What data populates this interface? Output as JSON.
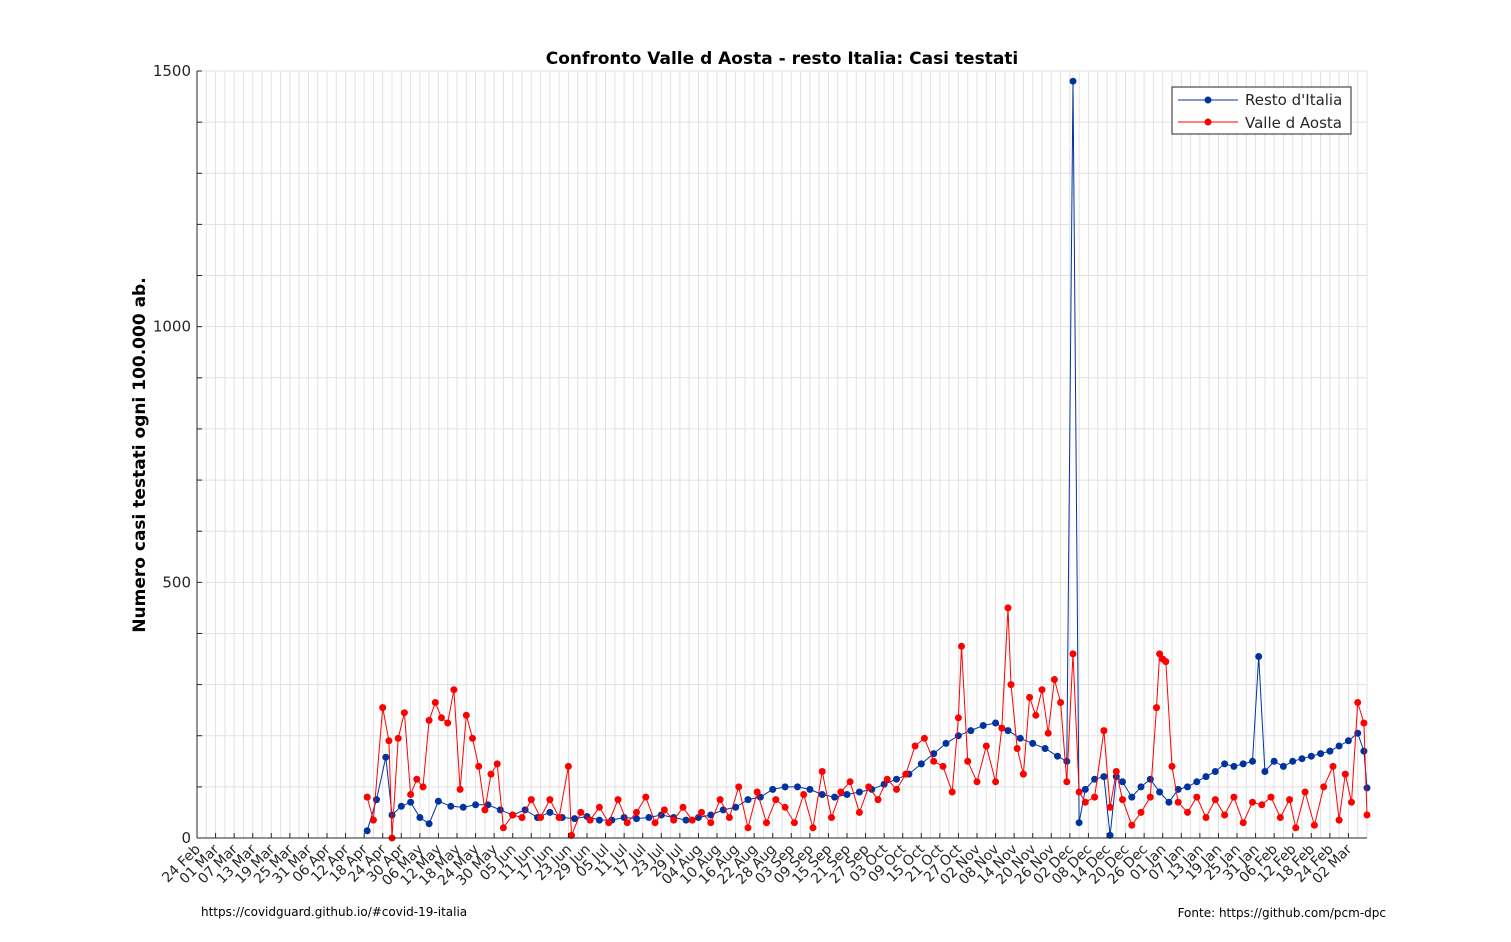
{
  "footer": {
    "left": "https://covidguard.github.io/#covid-19-italia",
    "right": "Fonte: https://github.com/pcm-dpc"
  },
  "chart_data": {
    "type": "line",
    "title": "Confronto Valle d Aosta - resto Italia: Casi testati",
    "xlabel": "",
    "ylabel": "Numero casi testati ogni 100.000 ab.",
    "ylim": [
      0,
      1500
    ],
    "yticks": [
      0,
      500,
      1000,
      1500
    ],
    "x_axis": "dates",
    "xlim": [
      "2020-02-24",
      "2021-03-08"
    ],
    "xticks": [
      "24 Feb",
      "01 Mar",
      "07 Mar",
      "13 Mar",
      "19 Mar",
      "25 Mar",
      "31 Mar",
      "06 Apr",
      "12 Apr",
      "18 Apr",
      "24 Apr",
      "30 Apr",
      "06 May",
      "12 May",
      "18 May",
      "24 May",
      "30 May",
      "05 Jun",
      "11 Jun",
      "17 Jun",
      "23 Jun",
      "29 Jun",
      "05 Jul",
      "11 Jul",
      "17 Jul",
      "23 Jul",
      "29 Jul",
      "04 Aug",
      "10 Aug",
      "16 Aug",
      "22 Aug",
      "28 Aug",
      "03 Sep",
      "09 Sep",
      "15 Sep",
      "21 Sep",
      "27 Sep",
      "03 Oct",
      "09 Oct",
      "15 Oct",
      "21 Oct",
      "27 Oct",
      "02 Nov",
      "08 Nov",
      "14 Nov",
      "20 Nov",
      "26 Nov",
      "02 Dec",
      "08 Dec",
      "14 Dec",
      "20 Dec",
      "26 Dec",
      "01 Jan",
      "07 Jan",
      "13 Jan",
      "19 Jan",
      "25 Jan",
      "31 Jan",
      "06 Feb",
      "12 Feb",
      "18 Feb",
      "24 Feb",
      "02 Mar"
    ],
    "grid": true,
    "legend_position": "top-right",
    "series": [
      {
        "name": "Resto d'Italia",
        "color": "#0033a0",
        "marker": "circle",
        "points": [
          [
            "2020-04-19",
            14
          ],
          [
            "2020-04-22",
            75
          ],
          [
            "2020-04-25",
            158
          ],
          [
            "2020-04-27",
            45
          ],
          [
            "2020-04-30",
            62
          ],
          [
            "2020-05-03",
            70
          ],
          [
            "2020-05-06",
            40
          ],
          [
            "2020-05-09",
            28
          ],
          [
            "2020-05-12",
            72
          ],
          [
            "2020-05-16",
            62
          ],
          [
            "2020-05-20",
            60
          ],
          [
            "2020-05-24",
            65
          ],
          [
            "2020-05-28",
            65
          ],
          [
            "2020-06-01",
            55
          ],
          [
            "2020-06-05",
            45
          ],
          [
            "2020-06-09",
            55
          ],
          [
            "2020-06-13",
            40
          ],
          [
            "2020-06-17",
            50
          ],
          [
            "2020-06-21",
            40
          ],
          [
            "2020-06-25",
            38
          ],
          [
            "2020-06-29",
            42
          ],
          [
            "2020-07-03",
            35
          ],
          [
            "2020-07-07",
            35
          ],
          [
            "2020-07-11",
            40
          ],
          [
            "2020-07-15",
            38
          ],
          [
            "2020-07-19",
            40
          ],
          [
            "2020-07-23",
            45
          ],
          [
            "2020-07-27",
            40
          ],
          [
            "2020-07-31",
            35
          ],
          [
            "2020-08-04",
            40
          ],
          [
            "2020-08-08",
            45
          ],
          [
            "2020-08-12",
            55
          ],
          [
            "2020-08-16",
            60
          ],
          [
            "2020-08-20",
            75
          ],
          [
            "2020-08-24",
            80
          ],
          [
            "2020-08-28",
            95
          ],
          [
            "2020-09-01",
            100
          ],
          [
            "2020-09-05",
            100
          ],
          [
            "2020-09-09",
            95
          ],
          [
            "2020-09-13",
            85
          ],
          [
            "2020-09-17",
            80
          ],
          [
            "2020-09-21",
            85
          ],
          [
            "2020-09-25",
            90
          ],
          [
            "2020-09-29",
            95
          ],
          [
            "2020-10-03",
            105
          ],
          [
            "2020-10-07",
            115
          ],
          [
            "2020-10-11",
            125
          ],
          [
            "2020-10-15",
            145
          ],
          [
            "2020-10-19",
            165
          ],
          [
            "2020-10-23",
            185
          ],
          [
            "2020-10-27",
            200
          ],
          [
            "2020-10-31",
            210
          ],
          [
            "2020-11-04",
            220
          ],
          [
            "2020-11-08",
            225
          ],
          [
            "2020-11-12",
            210
          ],
          [
            "2020-11-16",
            195
          ],
          [
            "2020-11-20",
            185
          ],
          [
            "2020-11-24",
            175
          ],
          [
            "2020-11-28",
            160
          ],
          [
            "2020-12-01",
            150
          ],
          [
            "2020-12-03",
            1480
          ],
          [
            "2020-12-05",
            30
          ],
          [
            "2020-12-07",
            95
          ],
          [
            "2020-12-10",
            115
          ],
          [
            "2020-12-13",
            120
          ],
          [
            "2020-12-15",
            5
          ],
          [
            "2020-12-17",
            120
          ],
          [
            "2020-12-19",
            110
          ],
          [
            "2020-12-22",
            80
          ],
          [
            "2020-12-25",
            100
          ],
          [
            "2020-12-28",
            115
          ],
          [
            "2020-12-31",
            90
          ],
          [
            "2021-01-03",
            70
          ],
          [
            "2021-01-06",
            95
          ],
          [
            "2021-01-09",
            100
          ],
          [
            "2021-01-12",
            110
          ],
          [
            "2021-01-15",
            120
          ],
          [
            "2021-01-18",
            130
          ],
          [
            "2021-01-21",
            145
          ],
          [
            "2021-01-24",
            140
          ],
          [
            "2021-01-27",
            145
          ],
          [
            "2021-01-30",
            150
          ],
          [
            "2021-02-01",
            355
          ],
          [
            "2021-02-03",
            130
          ],
          [
            "2021-02-06",
            150
          ],
          [
            "2021-02-09",
            140
          ],
          [
            "2021-02-12",
            150
          ],
          [
            "2021-02-15",
            155
          ],
          [
            "2021-02-18",
            160
          ],
          [
            "2021-02-21",
            165
          ],
          [
            "2021-02-24",
            170
          ],
          [
            "2021-02-27",
            180
          ],
          [
            "2021-03-02",
            190
          ],
          [
            "2021-03-05",
            205
          ],
          [
            "2021-03-07",
            170
          ],
          [
            "2021-03-08",
            98
          ]
        ]
      },
      {
        "name": "Valle d Aosta",
        "color": "#ff0000",
        "marker": "circle",
        "points": [
          [
            "2020-04-19",
            80
          ],
          [
            "2020-04-21",
            35
          ],
          [
            "2020-04-24",
            255
          ],
          [
            "2020-04-26",
            190
          ],
          [
            "2020-04-27",
            0
          ],
          [
            "2020-04-29",
            195
          ],
          [
            "2020-05-01",
            245
          ],
          [
            "2020-05-03",
            85
          ],
          [
            "2020-05-05",
            115
          ],
          [
            "2020-05-07",
            100
          ],
          [
            "2020-05-09",
            230
          ],
          [
            "2020-05-11",
            265
          ],
          [
            "2020-05-13",
            235
          ],
          [
            "2020-05-15",
            225
          ],
          [
            "2020-05-17",
            290
          ],
          [
            "2020-05-19",
            95
          ],
          [
            "2020-05-21",
            240
          ],
          [
            "2020-05-23",
            195
          ],
          [
            "2020-05-25",
            140
          ],
          [
            "2020-05-27",
            55
          ],
          [
            "2020-05-29",
            125
          ],
          [
            "2020-05-31",
            145
          ],
          [
            "2020-06-02",
            20
          ],
          [
            "2020-06-05",
            45
          ],
          [
            "2020-06-08",
            40
          ],
          [
            "2020-06-11",
            75
          ],
          [
            "2020-06-14",
            40
          ],
          [
            "2020-06-17",
            75
          ],
          [
            "2020-06-20",
            40
          ],
          [
            "2020-06-23",
            140
          ],
          [
            "2020-06-24",
            5
          ],
          [
            "2020-06-27",
            50
          ],
          [
            "2020-06-30",
            35
          ],
          [
            "2020-07-03",
            60
          ],
          [
            "2020-07-06",
            30
          ],
          [
            "2020-07-09",
            75
          ],
          [
            "2020-07-12",
            30
          ],
          [
            "2020-07-15",
            50
          ],
          [
            "2020-07-18",
            80
          ],
          [
            "2020-07-21",
            30
          ],
          [
            "2020-07-24",
            55
          ],
          [
            "2020-07-27",
            35
          ],
          [
            "2020-07-30",
            60
          ],
          [
            "2020-08-02",
            35
          ],
          [
            "2020-08-05",
            50
          ],
          [
            "2020-08-08",
            30
          ],
          [
            "2020-08-11",
            75
          ],
          [
            "2020-08-14",
            40
          ],
          [
            "2020-08-17",
            100
          ],
          [
            "2020-08-20",
            20
          ],
          [
            "2020-08-23",
            90
          ],
          [
            "2020-08-26",
            30
          ],
          [
            "2020-08-29",
            75
          ],
          [
            "2020-09-01",
            60
          ],
          [
            "2020-09-04",
            30
          ],
          [
            "2020-09-07",
            85
          ],
          [
            "2020-09-10",
            20
          ],
          [
            "2020-09-13",
            130
          ],
          [
            "2020-09-16",
            40
          ],
          [
            "2020-09-19",
            90
          ],
          [
            "2020-09-22",
            110
          ],
          [
            "2020-09-25",
            50
          ],
          [
            "2020-09-28",
            100
          ],
          [
            "2020-10-01",
            75
          ],
          [
            "2020-10-04",
            115
          ],
          [
            "2020-10-07",
            95
          ],
          [
            "2020-10-10",
            125
          ],
          [
            "2020-10-13",
            180
          ],
          [
            "2020-10-16",
            195
          ],
          [
            "2020-10-19",
            150
          ],
          [
            "2020-10-22",
            140
          ],
          [
            "2020-10-25",
            90
          ],
          [
            "2020-10-27",
            235
          ],
          [
            "2020-10-28",
            375
          ],
          [
            "2020-10-30",
            150
          ],
          [
            "2020-11-02",
            110
          ],
          [
            "2020-11-05",
            180
          ],
          [
            "2020-11-08",
            110
          ],
          [
            "2020-11-10",
            215
          ],
          [
            "2020-11-12",
            450
          ],
          [
            "2020-11-13",
            300
          ],
          [
            "2020-11-15",
            175
          ],
          [
            "2020-11-17",
            125
          ],
          [
            "2020-11-19",
            275
          ],
          [
            "2020-11-21",
            240
          ],
          [
            "2020-11-23",
            290
          ],
          [
            "2020-11-25",
            205
          ],
          [
            "2020-11-27",
            310
          ],
          [
            "2020-11-29",
            265
          ],
          [
            "2020-12-01",
            110
          ],
          [
            "2020-12-03",
            360
          ],
          [
            "2020-12-05",
            90
          ],
          [
            "2020-12-07",
            70
          ],
          [
            "2020-12-10",
            80
          ],
          [
            "2020-12-13",
            210
          ],
          [
            "2020-12-15",
            60
          ],
          [
            "2020-12-17",
            130
          ],
          [
            "2020-12-19",
            75
          ],
          [
            "2020-12-22",
            25
          ],
          [
            "2020-12-25",
            50
          ],
          [
            "2020-12-28",
            80
          ],
          [
            "2020-12-30",
            255
          ],
          [
            "2020-12-31",
            360
          ],
          [
            "2021-01-01",
            350
          ],
          [
            "2021-01-02",
            345
          ],
          [
            "2021-01-04",
            140
          ],
          [
            "2021-01-06",
            70
          ],
          [
            "2021-01-09",
            50
          ],
          [
            "2021-01-12",
            80
          ],
          [
            "2021-01-15",
            40
          ],
          [
            "2021-01-18",
            75
          ],
          [
            "2021-01-21",
            45
          ],
          [
            "2021-01-24",
            80
          ],
          [
            "2021-01-27",
            30
          ],
          [
            "2021-01-30",
            70
          ],
          [
            "2021-02-02",
            65
          ],
          [
            "2021-02-05",
            80
          ],
          [
            "2021-02-08",
            40
          ],
          [
            "2021-02-11",
            75
          ],
          [
            "2021-02-13",
            20
          ],
          [
            "2021-02-16",
            90
          ],
          [
            "2021-02-19",
            25
          ],
          [
            "2021-02-22",
            100
          ],
          [
            "2021-02-25",
            140
          ],
          [
            "2021-02-27",
            35
          ],
          [
            "2021-03-01",
            125
          ],
          [
            "2021-03-03",
            70
          ],
          [
            "2021-03-05",
            265
          ],
          [
            "2021-03-07",
            225
          ],
          [
            "2021-03-08",
            45
          ]
        ]
      }
    ]
  }
}
